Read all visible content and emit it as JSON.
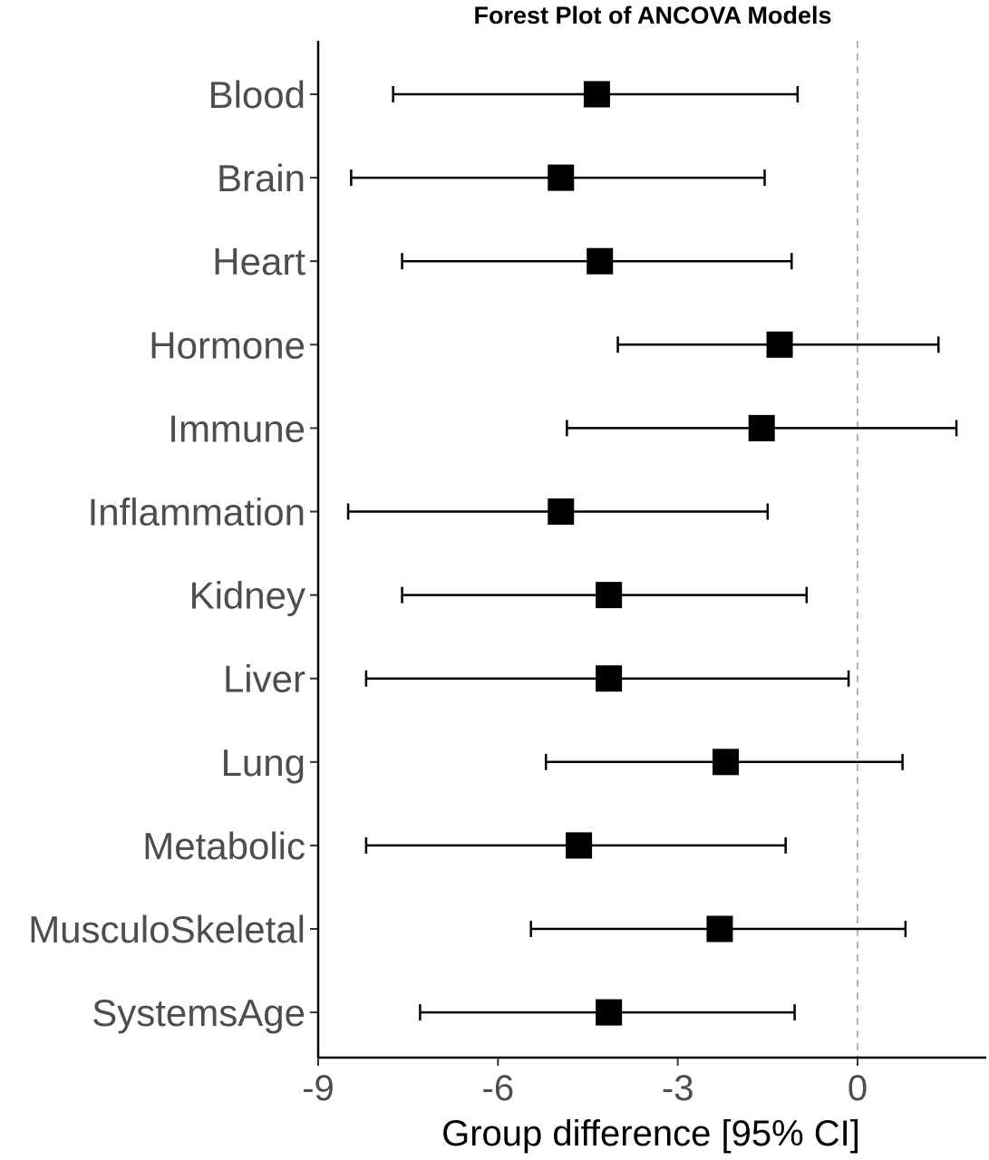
{
  "chart_data": {
    "type": "forest",
    "title": "Forest Plot of ANCOVA Models",
    "xlabel": "Group difference [95% CI]",
    "ylabel": "",
    "xlim": [
      -9,
      2.1
    ],
    "xticks": [
      -9,
      -6,
      -3,
      0
    ],
    "reference_line": 0,
    "grid": false,
    "rows": [
      {
        "label": "Blood",
        "estimate": -4.35,
        "lower": -7.75,
        "upper": -1.0
      },
      {
        "label": "Brain",
        "estimate": -4.95,
        "lower": -8.45,
        "upper": -1.55
      },
      {
        "label": "Heart",
        "estimate": -4.3,
        "lower": -7.6,
        "upper": -1.1
      },
      {
        "label": "Hormone",
        "estimate": -1.3,
        "lower": -4.0,
        "upper": 1.35
      },
      {
        "label": "Immune",
        "estimate": -1.6,
        "lower": -4.85,
        "upper": 1.65
      },
      {
        "label": "Inflammation",
        "estimate": -4.95,
        "lower": -8.5,
        "upper": -1.5
      },
      {
        "label": "Kidney",
        "estimate": -4.15,
        "lower": -7.6,
        "upper": -0.85
      },
      {
        "label": "Liver",
        "estimate": -4.15,
        "lower": -8.2,
        "upper": -0.15
      },
      {
        "label": "Lung",
        "estimate": -2.2,
        "lower": -5.2,
        "upper": 0.75
      },
      {
        "label": "Metabolic",
        "estimate": -4.65,
        "lower": -8.2,
        "upper": -1.2
      },
      {
        "label": "MusculoSkeletal",
        "estimate": -2.3,
        "lower": -5.45,
        "upper": 0.8
      },
      {
        "label": "SystemsAge",
        "estimate": -4.15,
        "lower": -7.3,
        "upper": -1.05
      }
    ]
  }
}
